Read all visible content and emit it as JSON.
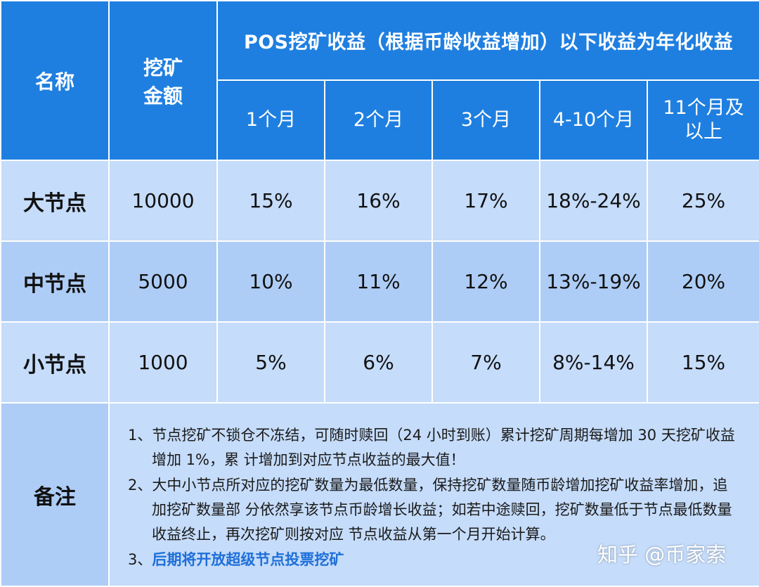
{
  "header": {
    "name_label": "名称",
    "amount_label_line1": "挖矿",
    "amount_label_line2": "金额",
    "pos_title": "POS挖矿收益（根据币龄收益增加）以下收益为年化收益",
    "periods": [
      "1个月",
      "2个月",
      "3个月",
      "4-10个月"
    ],
    "period_last_line1": "11个月及",
    "period_last_line2": "以上"
  },
  "rows": [
    {
      "name": "大节点",
      "amount": "10000",
      "rates": [
        "15%",
        "16%",
        "17%",
        "18%-24%",
        "25%"
      ]
    },
    {
      "name": "中节点",
      "amount": "5000",
      "rates": [
        "10%",
        "11%",
        "12%",
        "13%-19%",
        "20%"
      ]
    },
    {
      "name": "小节点",
      "amount": "1000",
      "rates": [
        "5%",
        "6%",
        "7%",
        "8%-14%",
        "15%"
      ]
    }
  ],
  "notes": {
    "label": "备注",
    "items": [
      "1、节点挖矿不锁仓不冻结，可随时赎回（24 小时到账）累计挖矿周期每增加 30 天挖矿收益增加 1%，累 计增加到对应节点收益的最大值！",
      "2、大中小节点所对应的挖矿数量为最低数量，保持挖矿数量随币龄增加挖矿收益率增加，追加挖矿数量部 分依然享该节点币龄增长收益；如若中途赎回，挖矿数量低于节点最低数量收益终止，再次挖矿则按对应 节点收益从第一个月开始计算。"
    ],
    "item3_num": "3、",
    "item3_text": "后期将开放超级节点投票挖矿"
  },
  "watermark": "知乎 @币家索"
}
